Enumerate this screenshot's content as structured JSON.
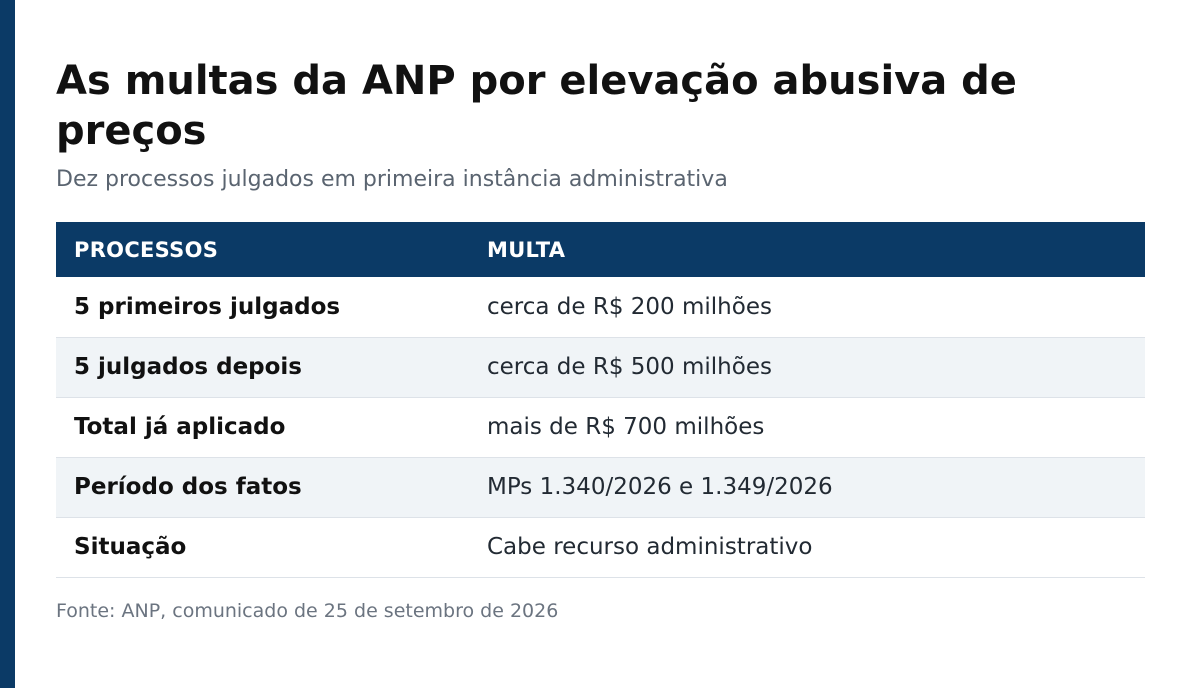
{
  "title": "As multas da ANP por elevação abusiva de preços",
  "subtitle": "Dez processos julgados em primeira instância administrativa",
  "table": {
    "headers": [
      "PROCESSOS",
      "MULTA"
    ],
    "rows": [
      {
        "label": "5 primeiros julgados",
        "value": "cerca de R$ 200 milhões"
      },
      {
        "label": "5 julgados depois",
        "value": "cerca de R$ 500 milhões"
      },
      {
        "label": "Total já aplicado",
        "value": "mais de R$ 700 milhões"
      },
      {
        "label": "Período dos fatos",
        "value": "MPs 1.340/2026 e 1.349/2026"
      },
      {
        "label": "Situação",
        "value": "Cabe recurso administrativo"
      }
    ]
  },
  "source": "Fonte: ANP, comunicado de 25 de setembro de 2026",
  "colors": {
    "accent": "#0b3a66",
    "row_alt": "#f0f4f7",
    "title": "#111111",
    "subtitle": "#5a6470"
  }
}
